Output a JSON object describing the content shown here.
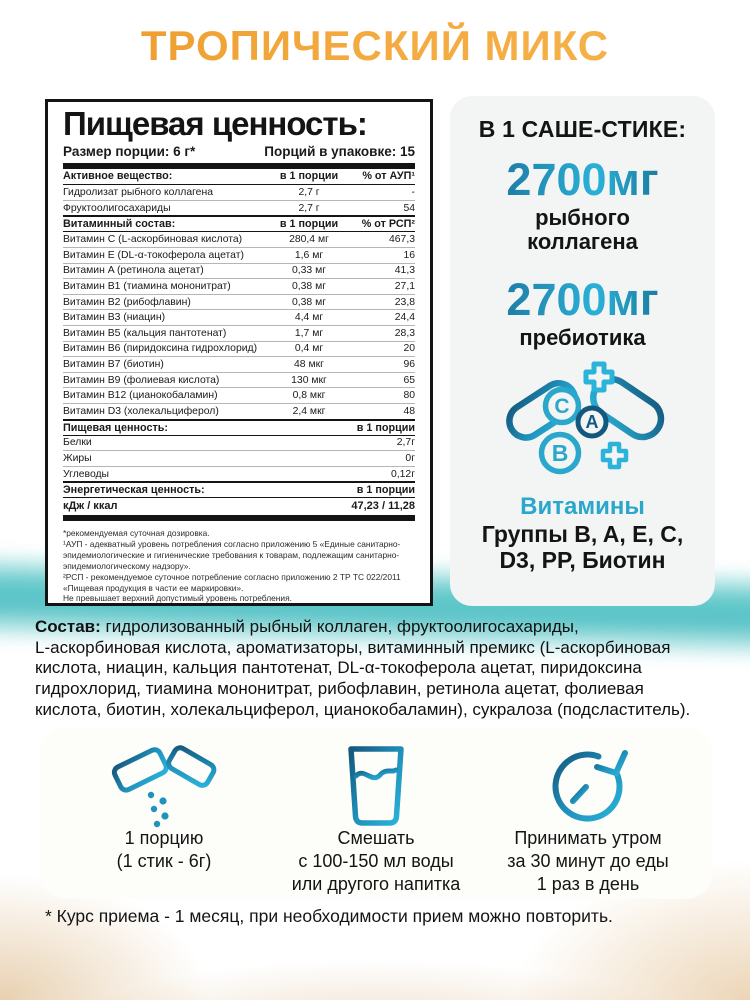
{
  "title": "ТРОПИЧЕСКИЙ МИКС",
  "colors": {
    "accent_orange": "#f3a93e",
    "accent_teal": "#2aa7cb",
    "accent_navy": "#155e86",
    "sand": "#ecca93",
    "sea": "#62c8ca"
  },
  "nutrition_table": {
    "title": "Пищевая ценность:",
    "serving_size": "Размер порции: 6 г*",
    "servings_per_pack": "Порций в упаковке: 15",
    "active_header": {
      "name": "Активное вещество:",
      "col_amount": "в 1 порции",
      "col_percent": "% от АУП¹"
    },
    "active_rows": [
      {
        "name": "Гидролизат рыбного коллагена",
        "amount": "2,7 г",
        "percent": "-"
      },
      {
        "name": "Фруктоолигосахариды",
        "amount": "2,7 г",
        "percent": "54"
      }
    ],
    "vitamin_header": {
      "name": "Витаминный состав:",
      "col_amount": "в 1 порции",
      "col_percent": "% от РСП²"
    },
    "vitamin_rows": [
      {
        "name": "Витамин C (L-аскорбиновая кислота)",
        "amount": "280,4 мг",
        "percent": "467,3"
      },
      {
        "name": "Витамин E (DL-α-токоферола ацетат)",
        "amount": "1,6 мг",
        "percent": "16"
      },
      {
        "name": "Витамин A (ретинола ацетат)",
        "amount": "0,33 мг",
        "percent": "41,3"
      },
      {
        "name": "Витамин B1 (тиамина мононитрат)",
        "amount": "0,38 мг",
        "percent": "27,1"
      },
      {
        "name": "Витамин B2 (рибофлавин)",
        "amount": "0,38 мг",
        "percent": "23,8"
      },
      {
        "name": "Витамин B3 (ниацин)",
        "amount": "4,4 мг",
        "percent": "24,4"
      },
      {
        "name": "Витамин B5 (кальция пантотенат)",
        "amount": "1,7 мг",
        "percent": "28,3"
      },
      {
        "name": "Витамин B6 (пиридоксина гидрохлорид)",
        "amount": "0,4 мг",
        "percent": "20"
      },
      {
        "name": "Витамин B7 (биотин)",
        "amount": "48 мкг",
        "percent": "96"
      },
      {
        "name": "Витамин B9 (фолиевая кислота)",
        "amount": "130 мкг",
        "percent": "65"
      },
      {
        "name": "Витамин B12 (цианокобаламин)",
        "amount": "0,8 мкг",
        "percent": "80"
      },
      {
        "name": "Витамин D3 (холекальциферол)",
        "amount": "2,4 мкг",
        "percent": "48"
      }
    ],
    "food_header": {
      "name": "Пищевая ценность:",
      "col_amount": "в 1 порции"
    },
    "food_rows": [
      {
        "name": "Белки",
        "amount": "2,7г"
      },
      {
        "name": "Жиры",
        "amount": "0г"
      },
      {
        "name": "Углеводы",
        "amount": "0,12г"
      }
    ],
    "energy_header": {
      "name": "Энергетическая ценность:",
      "col_amount": "в 1 порции"
    },
    "energy_row": {
      "name": "кДж / ккал",
      "amount": "47,23 / 11,28"
    },
    "footnotes": [
      "*рекомендуемая суточная дозировка.",
      "¹АУП - адекватный уровень потребления согласно приложению 5 «Единые санитарно-эпидемиологические и гигиенические требования к товарам, подлежащим санитарно-эпидемиологическому надзору».",
      "²РСП - рекомендуемое суточное потребление согласно приложению 2 ТР ТС 022/2011 «Пищевая продукция в части ее маркировки».",
      "Не превышает верхний допустимый уровень потребления."
    ]
  },
  "sachet_panel": {
    "title": "В 1 САШЕ-СТИКЕ:",
    "items": [
      {
        "amount": "2700мг",
        "label_line1": "рыбного",
        "label_line2": "коллагена"
      },
      {
        "amount": "2700мг",
        "label_line1": "пребиотика",
        "label_line2": ""
      }
    ],
    "vitamins_icon": "vitamins-capsules-icon",
    "vitamins_title": "Витамины",
    "vitamins_line1": "Группы B, A, E, C,",
    "vitamins_line2": "D3, PP, Биотин"
  },
  "composition": {
    "label": "Состав:",
    "lines": [
      " гидролизованный рыбный коллаген, фруктоолигосахариды,",
      "L-аскорбиновая кислота, ароматизаторы, витаминный премикс (L-аскорбиновая",
      "кислота, ниацин, кальция пантотенат, DL-α-токоферола ацетат, пиридоксина",
      "гидрохлорид, тиамина мононитрат, рибофлавин, ретинола ацетат, фолиевая",
      "кислота, биотин, холекальциферол, цианокобаламин), сукралоза (подсластитель)."
    ]
  },
  "instructions": [
    {
      "icon": "sachet-pour-icon",
      "lines": [
        "1 порцию",
        "(1 стик - 6г)"
      ]
    },
    {
      "icon": "glass-icon",
      "lines": [
        "Смешать",
        "с 100-150 мл воды",
        "или другого напитка"
      ]
    },
    {
      "icon": "clock-icon",
      "lines": [
        "Принимать утром",
        "за 30 минут до еды",
        "1 раз в день"
      ]
    }
  ],
  "footer_note": "* Курс приема - 1 месяц, при необходимости прием можно повторить."
}
